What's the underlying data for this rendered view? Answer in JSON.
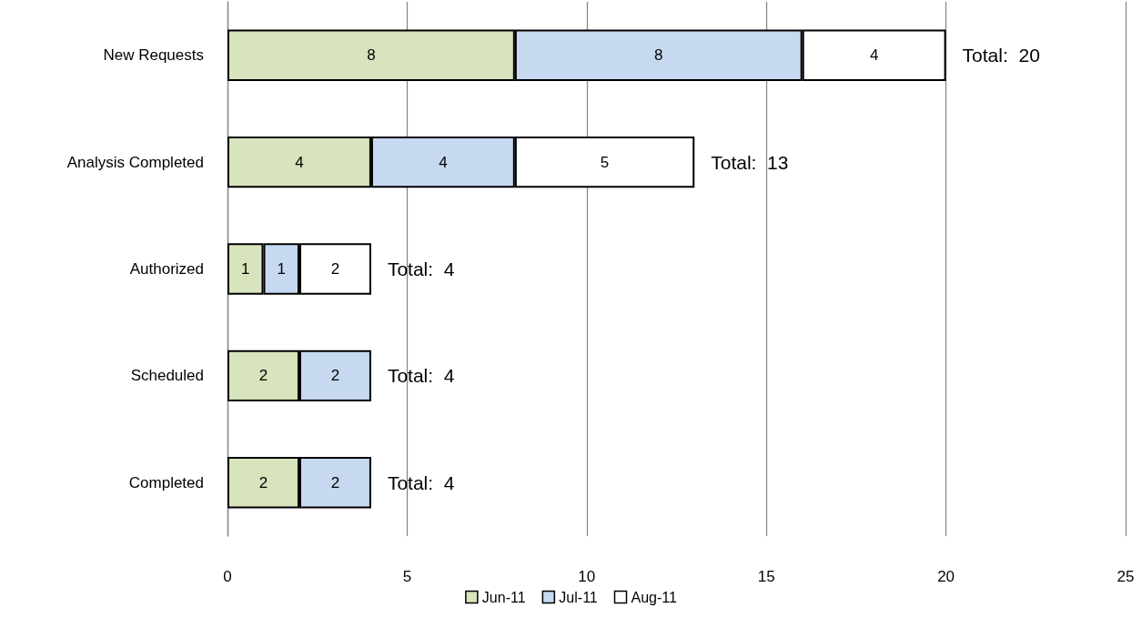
{
  "chart_data": {
    "type": "bar",
    "orientation": "horizontal",
    "stacked": true,
    "categories": [
      "New Requests",
      "Analysis Completed",
      "Authorized",
      "Scheduled",
      "Completed"
    ],
    "series": [
      {
        "name": "Jun-11",
        "color": "#d7e4bd",
        "values": [
          8,
          4,
          1,
          2,
          2
        ]
      },
      {
        "name": "Jul-11",
        "color": "#c6d9f1",
        "values": [
          8,
          4,
          1,
          2,
          2
        ]
      },
      {
        "name": "Aug-11",
        "color": "#ffffff",
        "values": [
          4,
          5,
          2,
          null,
          null
        ]
      }
    ],
    "xlim": [
      0,
      25
    ],
    "xticks": [
      0,
      5,
      10,
      15,
      20,
      25
    ],
    "grid": "x",
    "legend": "bottom",
    "data_labels": true,
    "totals": [
      "Total:  20",
      "Total:  13",
      "Total:  4",
      "Total:  4",
      "Total:  4"
    ]
  }
}
